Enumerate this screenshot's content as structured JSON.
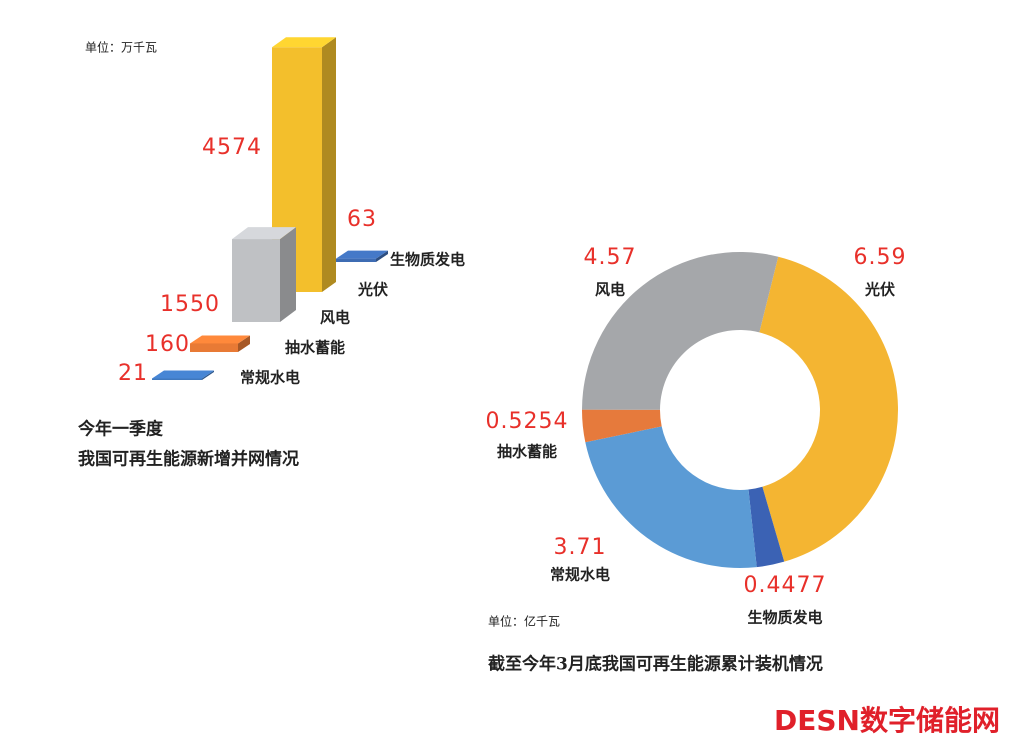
{
  "chart_data": [
    {
      "type": "bar3d",
      "title": "今年一季度",
      "subtitle": "我国可再生能源新增并网情况",
      "unit_label": "单位：万千瓦",
      "categories": [
        "光伏",
        "生物质发电",
        "风电",
        "抽水蓄能",
        "常规水电"
      ],
      "values": [
        4574,
        63,
        1550,
        160,
        21
      ],
      "colors": [
        "#f3bf2c",
        "#3e6cb3",
        "#bfc1c4",
        "#e87a35",
        "#3f78be"
      ]
    },
    {
      "type": "pie",
      "title": "截至今年3月底我国可再生能源累计装机情况",
      "unit_label": "单位：亿千瓦",
      "categories": [
        "光伏",
        "生物质发电",
        "常规水电",
        "抽水蓄能",
        "风电"
      ],
      "values": [
        6.59,
        0.4477,
        3.71,
        0.5254,
        4.57
      ],
      "colors": [
        "#f4b532",
        "#3b62b4",
        "#5b9bd5",
        "#e67a3c",
        "#a5a7aa"
      ]
    }
  ],
  "watermark": "DESN数字储能网"
}
